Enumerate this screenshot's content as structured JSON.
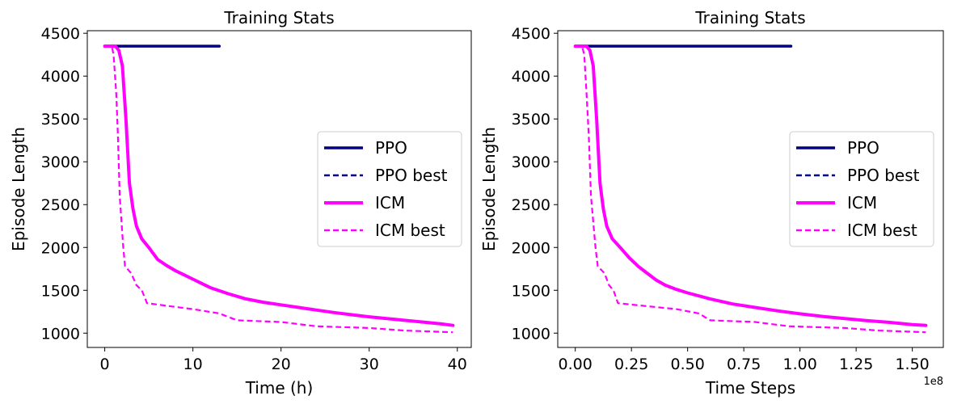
{
  "chart_data": [
    {
      "type": "line",
      "title": "Training Stats",
      "xlabel": "Time (h)",
      "ylabel": "Episode Length",
      "xlim": [
        -1.98,
        41.58
      ],
      "ylim": [
        833,
        4530
      ],
      "xticks": [
        0,
        10,
        20,
        30,
        40
      ],
      "xtick_labels": [
        "0",
        "10",
        "20",
        "30",
        "40"
      ],
      "yticks": [
        1000,
        1500,
        2000,
        2500,
        3000,
        3500,
        4000,
        4500
      ],
      "ytick_labels": [
        "1000",
        "1500",
        "2000",
        "2500",
        "3000",
        "3500",
        "4000",
        "4500"
      ],
      "x_offset_label": "",
      "grid": false,
      "legend_position": "center-right",
      "series": [
        {
          "name": "PPO",
          "color": "#000080",
          "style": "solid",
          "x": [
            0,
            13
          ],
          "y": [
            4350,
            4350
          ]
        },
        {
          "name": "PPO best",
          "color": "#000080",
          "style": "dashed",
          "x": [
            0,
            13
          ],
          "y": [
            4350,
            4350
          ]
        },
        {
          "name": "ICM",
          "color": "#ff00ff",
          "style": "solid",
          "x": [
            0,
            1.2,
            1.6,
            2.0,
            2.4,
            2.8,
            3.2,
            3.6,
            4.2,
            5,
            6,
            7,
            8,
            9,
            10,
            11,
            12,
            14,
            16,
            18,
            20,
            22,
            24,
            26,
            28,
            30,
            32,
            34,
            36,
            38,
            39.5
          ],
          "y": [
            4350,
            4350,
            4300,
            4120,
            3500,
            2750,
            2450,
            2250,
            2100,
            2000,
            1860,
            1790,
            1730,
            1680,
            1630,
            1580,
            1530,
            1460,
            1400,
            1360,
            1330,
            1300,
            1270,
            1240,
            1215,
            1190,
            1170,
            1150,
            1130,
            1110,
            1090
          ]
        },
        {
          "name": "ICM best",
          "color": "#ff00ff",
          "style": "dashed",
          "x": [
            0,
            0.8,
            1.0,
            1.3,
            1.5,
            1.7,
            1.9,
            2.1,
            2.3,
            3.0,
            3.6,
            4.2,
            4.8,
            7,
            10,
            13,
            15,
            20,
            24,
            30,
            34,
            39.5
          ],
          "y": [
            4350,
            4350,
            4250,
            3800,
            3300,
            2600,
            2300,
            2000,
            1780,
            1700,
            1560,
            1500,
            1350,
            1320,
            1280,
            1230,
            1150,
            1130,
            1080,
            1060,
            1030,
            1010
          ]
        }
      ]
    },
    {
      "type": "line",
      "title": "Training Stats",
      "xlabel": "Time Steps",
      "ylabel": "Episode Length",
      "xlim": [
        -0.078,
        1.638
      ],
      "ylim": [
        833,
        4530
      ],
      "xticks": [
        0,
        0.25,
        0.5,
        0.75,
        1.0,
        1.25,
        1.5
      ],
      "xtick_labels": [
        "0.00",
        "0.25",
        "0.50",
        "0.75",
        "1.00",
        "1.25",
        "1.50"
      ],
      "yticks": [
        1000,
        1500,
        2000,
        2500,
        3000,
        3500,
        4000,
        4500
      ],
      "ytick_labels": [
        "1000",
        "1500",
        "2000",
        "2500",
        "3000",
        "3500",
        "4000",
        "4500"
      ],
      "x_offset_label": "1e8",
      "grid": false,
      "legend_position": "center-right",
      "series": [
        {
          "name": "PPO",
          "color": "#000080",
          "style": "solid",
          "x": [
            0,
            0.96
          ],
          "y": [
            4350,
            4350
          ]
        },
        {
          "name": "PPO best",
          "color": "#000080",
          "style": "dashed",
          "x": [
            0,
            0.96
          ],
          "y": [
            4350,
            4350
          ]
        },
        {
          "name": "ICM",
          "color": "#ff00ff",
          "style": "solid",
          "x": [
            0,
            0.05,
            0.065,
            0.08,
            0.095,
            0.11,
            0.125,
            0.14,
            0.165,
            0.2,
            0.24,
            0.28,
            0.32,
            0.36,
            0.4,
            0.45,
            0.5,
            0.6,
            0.7,
            0.8,
            0.9,
            1.0,
            1.1,
            1.2,
            1.3,
            1.4,
            1.5,
            1.56
          ],
          "y": [
            4350,
            4350,
            4300,
            4120,
            3500,
            2750,
            2450,
            2250,
            2100,
            2000,
            1880,
            1780,
            1700,
            1620,
            1560,
            1510,
            1470,
            1400,
            1340,
            1300,
            1260,
            1225,
            1195,
            1170,
            1145,
            1125,
            1100,
            1090
          ]
        },
        {
          "name": "ICM best",
          "color": "#ff00ff",
          "style": "dashed",
          "x": [
            0,
            0.03,
            0.04,
            0.05,
            0.06,
            0.07,
            0.08,
            0.09,
            0.1,
            0.13,
            0.15,
            0.17,
            0.19,
            0.3,
            0.45,
            0.55,
            0.6,
            0.8,
            0.95,
            1.2,
            1.35,
            1.56
          ],
          "y": [
            4350,
            4350,
            4250,
            3800,
            3300,
            2600,
            2300,
            2000,
            1780,
            1700,
            1560,
            1500,
            1350,
            1320,
            1280,
            1230,
            1150,
            1130,
            1080,
            1060,
            1030,
            1010
          ]
        }
      ]
    }
  ]
}
